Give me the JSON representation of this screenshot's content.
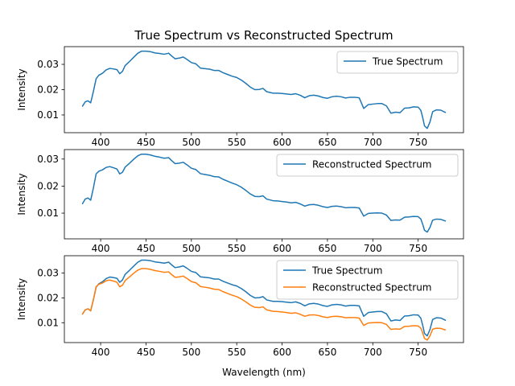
{
  "chart_data": [
    {
      "type": "line",
      "title": "True Spectrum vs Reconstructed Spectrum",
      "xlabel": "",
      "ylabel": "Intensity",
      "xlim": [
        360,
        800
      ],
      "ylim": [
        0.003,
        0.037
      ],
      "xticks": [
        "400",
        "450",
        "500",
        "550",
        "600",
        "650",
        "700",
        "750"
      ],
      "yticks": [
        "0.01",
        "0.02",
        "0.03"
      ],
      "legend_position": "top-right",
      "series": [
        {
          "name": "True Spectrum",
          "color": "#1f77b4",
          "x": [
            380,
            383,
            386,
            389,
            392,
            395,
            398,
            402,
            406,
            410,
            414,
            418,
            421,
            424,
            427,
            432,
            437,
            441,
            445,
            450,
            455,
            460,
            465,
            470,
            475,
            478,
            482,
            487,
            491,
            495,
            500,
            505,
            510,
            515,
            520,
            525,
            530,
            535,
            540,
            545,
            550,
            555,
            560,
            565,
            570,
            575,
            579,
            583,
            590,
            595,
            600,
            605,
            610,
            615,
            620,
            625,
            630,
            635,
            640,
            645,
            650,
            655,
            660,
            665,
            670,
            675,
            680,
            685,
            690,
            695,
            700,
            705,
            710,
            715,
            720,
            725,
            730,
            735,
            740,
            745,
            750,
            753,
            755,
            757,
            760,
            763,
            766,
            770,
            775,
            780
          ],
          "y": [
            0.0135,
            0.0152,
            0.0156,
            0.0148,
            0.0193,
            0.0243,
            0.0257,
            0.0265,
            0.0278,
            0.0284,
            0.0282,
            0.0279,
            0.0263,
            0.0272,
            0.0295,
            0.0312,
            0.033,
            0.0344,
            0.0352,
            0.0352,
            0.035,
            0.0345,
            0.0343,
            0.034,
            0.0344,
            0.0334,
            0.0322,
            0.0325,
            0.0329,
            0.032,
            0.0307,
            0.0302,
            0.0285,
            0.0283,
            0.0281,
            0.0276,
            0.0276,
            0.0267,
            0.026,
            0.0253,
            0.0248,
            0.0238,
            0.0225,
            0.021,
            0.02,
            0.0201,
            0.0205,
            0.0192,
            0.0186,
            0.0186,
            0.0185,
            0.0183,
            0.0181,
            0.0184,
            0.0178,
            0.0168,
            0.0176,
            0.0178,
            0.0175,
            0.0169,
            0.0166,
            0.0172,
            0.0174,
            0.0172,
            0.0167,
            0.017,
            0.017,
            0.0168,
            0.0126,
            0.0141,
            0.0143,
            0.0145,
            0.0145,
            0.0136,
            0.0107,
            0.0111,
            0.0109,
            0.0127,
            0.0128,
            0.0132,
            0.0131,
            0.0118,
            0.009,
            0.0057,
            0.0047,
            0.0072,
            0.0113,
            0.012,
            0.0119,
            0.011
          ]
        }
      ]
    },
    {
      "type": "line",
      "title": "",
      "xlabel": "",
      "ylabel": "Intensity",
      "xlim": [
        360,
        800
      ],
      "ylim": [
        0.0005,
        0.0335
      ],
      "xticks": [
        "400",
        "450",
        "500",
        "550",
        "600",
        "650",
        "700",
        "750"
      ],
      "yticks": [
        "0.01",
        "0.02",
        "0.03"
      ],
      "legend_position": "top-right",
      "series": [
        {
          "name": "Reconstructed Spectrum",
          "color": "#1f77b4",
          "x": [
            380,
            383,
            386,
            389,
            392,
            395,
            398,
            402,
            406,
            410,
            414,
            418,
            421,
            424,
            427,
            432,
            437,
            441,
            445,
            450,
            455,
            460,
            465,
            470,
            475,
            478,
            482,
            487,
            491,
            495,
            500,
            505,
            510,
            515,
            520,
            525,
            530,
            535,
            540,
            545,
            550,
            555,
            560,
            565,
            570,
            575,
            579,
            583,
            590,
            595,
            600,
            605,
            610,
            615,
            620,
            625,
            630,
            635,
            640,
            645,
            650,
            655,
            660,
            665,
            670,
            675,
            680,
            685,
            690,
            695,
            700,
            705,
            710,
            715,
            720,
            725,
            730,
            735,
            740,
            745,
            750,
            753,
            755,
            757,
            760,
            763,
            766,
            770,
            775,
            780
          ],
          "y": [
            0.0135,
            0.0152,
            0.0156,
            0.0148,
            0.0193,
            0.0245,
            0.0255,
            0.026,
            0.0269,
            0.0272,
            0.0268,
            0.0263,
            0.0245,
            0.0251,
            0.027,
            0.0285,
            0.0301,
            0.0312,
            0.0318,
            0.0318,
            0.0315,
            0.031,
            0.0307,
            0.0303,
            0.0305,
            0.0295,
            0.0283,
            0.0285,
            0.0288,
            0.0279,
            0.0266,
            0.0261,
            0.0246,
            0.0243,
            0.024,
            0.0235,
            0.0234,
            0.0225,
            0.0218,
            0.0211,
            0.0205,
            0.0196,
            0.0184,
            0.0171,
            0.0162,
            0.0161,
            0.0164,
            0.0152,
            0.0146,
            0.0145,
            0.0143,
            0.0141,
            0.0138,
            0.014,
            0.0134,
            0.0126,
            0.0131,
            0.0132,
            0.0129,
            0.0124,
            0.0121,
            0.0125,
            0.0126,
            0.0124,
            0.012,
            0.0121,
            0.0121,
            0.0119,
            0.0089,
            0.0099,
            0.01,
            0.0101,
            0.01,
            0.0093,
            0.0073,
            0.0075,
            0.0074,
            0.0085,
            0.0086,
            0.0088,
            0.0087,
            0.0078,
            0.0059,
            0.0037,
            0.003,
            0.0047,
            0.0074,
            0.0078,
            0.0077,
            0.0071
          ]
        }
      ]
    },
    {
      "type": "line",
      "title": "",
      "xlabel": "Wavelength (nm)",
      "ylabel": "Intensity",
      "xlim": [
        360,
        800
      ],
      "ylim": [
        0.002,
        0.037
      ],
      "xticks": [
        "400",
        "450",
        "500",
        "550",
        "600",
        "650",
        "700",
        "750"
      ],
      "yticks": [
        "0.01",
        "0.02",
        "0.03"
      ],
      "legend_position": "top-right",
      "series": [
        {
          "name": "True Spectrum",
          "color": "#1f77b4",
          "x": [
            380,
            383,
            386,
            389,
            392,
            395,
            398,
            402,
            406,
            410,
            414,
            418,
            421,
            424,
            427,
            432,
            437,
            441,
            445,
            450,
            455,
            460,
            465,
            470,
            475,
            478,
            482,
            487,
            491,
            495,
            500,
            505,
            510,
            515,
            520,
            525,
            530,
            535,
            540,
            545,
            550,
            555,
            560,
            565,
            570,
            575,
            579,
            583,
            590,
            595,
            600,
            605,
            610,
            615,
            620,
            625,
            630,
            635,
            640,
            645,
            650,
            655,
            660,
            665,
            670,
            675,
            680,
            685,
            690,
            695,
            700,
            705,
            710,
            715,
            720,
            725,
            730,
            735,
            740,
            745,
            750,
            753,
            755,
            757,
            760,
            763,
            766,
            770,
            775,
            780
          ],
          "y": [
            0.0135,
            0.0152,
            0.0156,
            0.0148,
            0.0193,
            0.0243,
            0.0257,
            0.0265,
            0.0278,
            0.0284,
            0.0282,
            0.0279,
            0.0263,
            0.0272,
            0.0295,
            0.0312,
            0.033,
            0.0344,
            0.0352,
            0.0352,
            0.035,
            0.0345,
            0.0343,
            0.034,
            0.0344,
            0.0334,
            0.0322,
            0.0325,
            0.0329,
            0.032,
            0.0307,
            0.0302,
            0.0285,
            0.0283,
            0.0281,
            0.0276,
            0.0276,
            0.0267,
            0.026,
            0.0253,
            0.0248,
            0.0238,
            0.0225,
            0.021,
            0.02,
            0.0201,
            0.0205,
            0.0192,
            0.0186,
            0.0186,
            0.0185,
            0.0183,
            0.0181,
            0.0184,
            0.0178,
            0.0168,
            0.0176,
            0.0178,
            0.0175,
            0.0169,
            0.0166,
            0.0172,
            0.0174,
            0.0172,
            0.0167,
            0.017,
            0.017,
            0.0168,
            0.0126,
            0.0141,
            0.0143,
            0.0145,
            0.0145,
            0.0136,
            0.0107,
            0.0111,
            0.0109,
            0.0127,
            0.0128,
            0.0132,
            0.0131,
            0.0118,
            0.009,
            0.0057,
            0.0047,
            0.0072,
            0.0113,
            0.012,
            0.0119,
            0.011
          ]
        },
        {
          "name": "Reconstructed Spectrum",
          "color": "#ff7f0e",
          "x": [
            380,
            383,
            386,
            389,
            392,
            395,
            398,
            402,
            406,
            410,
            414,
            418,
            421,
            424,
            427,
            432,
            437,
            441,
            445,
            450,
            455,
            460,
            465,
            470,
            475,
            478,
            482,
            487,
            491,
            495,
            500,
            505,
            510,
            515,
            520,
            525,
            530,
            535,
            540,
            545,
            550,
            555,
            560,
            565,
            570,
            575,
            579,
            583,
            590,
            595,
            600,
            605,
            610,
            615,
            620,
            625,
            630,
            635,
            640,
            645,
            650,
            655,
            660,
            665,
            670,
            675,
            680,
            685,
            690,
            695,
            700,
            705,
            710,
            715,
            720,
            725,
            730,
            735,
            740,
            745,
            750,
            753,
            755,
            757,
            760,
            763,
            766,
            770,
            775,
            780
          ],
          "y": [
            0.0135,
            0.0152,
            0.0156,
            0.0148,
            0.0193,
            0.0245,
            0.0255,
            0.026,
            0.0269,
            0.0272,
            0.0268,
            0.0263,
            0.0245,
            0.0251,
            0.027,
            0.0285,
            0.0301,
            0.0312,
            0.0318,
            0.0318,
            0.0315,
            0.031,
            0.0307,
            0.0303,
            0.0305,
            0.0295,
            0.0283,
            0.0285,
            0.0288,
            0.0279,
            0.0266,
            0.0261,
            0.0246,
            0.0243,
            0.024,
            0.0235,
            0.0234,
            0.0225,
            0.0218,
            0.0211,
            0.0205,
            0.0196,
            0.0184,
            0.0171,
            0.0162,
            0.0161,
            0.0164,
            0.0152,
            0.0146,
            0.0145,
            0.0143,
            0.0141,
            0.0138,
            0.014,
            0.0134,
            0.0126,
            0.0131,
            0.0132,
            0.0129,
            0.0124,
            0.0121,
            0.0125,
            0.0126,
            0.0124,
            0.012,
            0.0121,
            0.0121,
            0.0119,
            0.0089,
            0.0099,
            0.01,
            0.0101,
            0.01,
            0.0093,
            0.0073,
            0.0075,
            0.0074,
            0.0085,
            0.0086,
            0.0088,
            0.0087,
            0.0078,
            0.0059,
            0.0037,
            0.003,
            0.0047,
            0.0074,
            0.0078,
            0.0077,
            0.0071
          ]
        }
      ]
    }
  ]
}
